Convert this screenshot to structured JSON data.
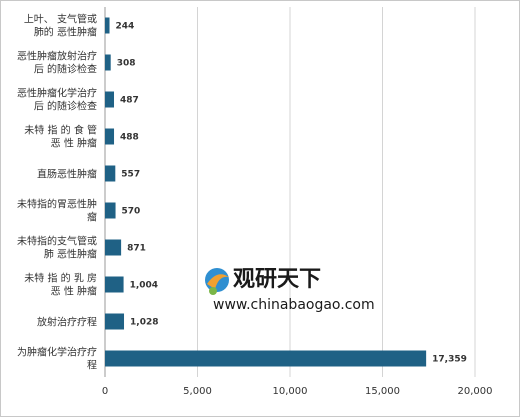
{
  "chart_data": {
    "type": "bar",
    "orientation": "horizontal",
    "categories": [
      "上叶、 支气管或|肺的 恶性肿瘤",
      "恶性肿瘤放射治疗|后 的随诊检查",
      "恶性肿瘤化学治疗|后 的随诊检查",
      "未特 指 的 食 管|恶 性 肿瘤",
      "直肠恶性肿瘤",
      "未特指的胃恶性肿|瘤",
      "未特指的支气管或|肺 恶性肿瘤",
      "未特 指 的 乳 房|恶 性 肿瘤",
      "放射治疗疗程",
      "为肿瘤化学治疗疗|程"
    ],
    "values": [
      244,
      308,
      487,
      488,
      557,
      570,
      871,
      1004,
      1028,
      17359
    ],
    "value_labels": [
      "244",
      "308",
      "487",
      "488",
      "557",
      "570",
      "871",
      "1,004",
      "1,028",
      "17,359"
    ],
    "xlim": [
      0,
      20000
    ],
    "xticks": [
      0,
      5000,
      10000,
      15000,
      20000
    ],
    "xtick_labels": [
      "0",
      "5,000",
      "10,000",
      "15,000",
      "20,000"
    ],
    "grid": "vertical",
    "bar_color": "#1f6185",
    "grid_color": "#d4d4d4"
  },
  "watermark": {
    "logo_icon": "china-baogao-logo",
    "cn_text": "观研天下",
    "url_text": "www.chinabaogao.com"
  }
}
